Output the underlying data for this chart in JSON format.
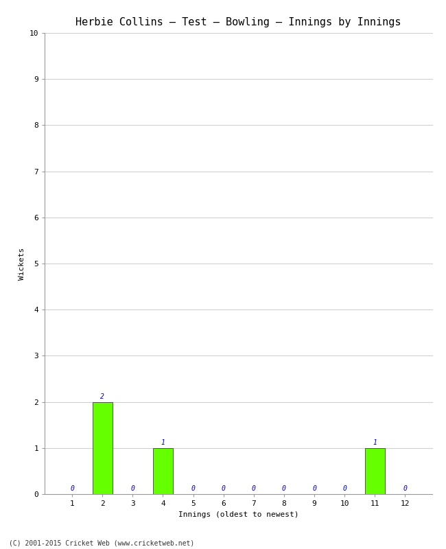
{
  "title": "Herbie Collins – Test – Bowling – Innings by Innings",
  "xlabel": "Innings (oldest to newest)",
  "ylabel": "Wickets",
  "innings": [
    1,
    2,
    3,
    4,
    5,
    6,
    7,
    8,
    9,
    10,
    11,
    12
  ],
  "wickets": [
    0,
    2,
    0,
    1,
    0,
    0,
    0,
    0,
    0,
    0,
    1,
    0
  ],
  "bar_color": "#66ff00",
  "bar_edge_color": "#222222",
  "label_color": "#0000cc",
  "ylim": [
    0,
    10
  ],
  "yticks": [
    0,
    1,
    2,
    3,
    4,
    5,
    6,
    7,
    8,
    9,
    10
  ],
  "background_color": "#ffffff",
  "grid_color": "#cccccc",
  "footer": "(C) 2001-2015 Cricket Web (www.cricketweb.net)",
  "title_fontsize": 11,
  "axis_label_fontsize": 8,
  "tick_fontsize": 8,
  "bar_label_fontsize": 7,
  "footer_fontsize": 7,
  "bar_width": 0.65
}
